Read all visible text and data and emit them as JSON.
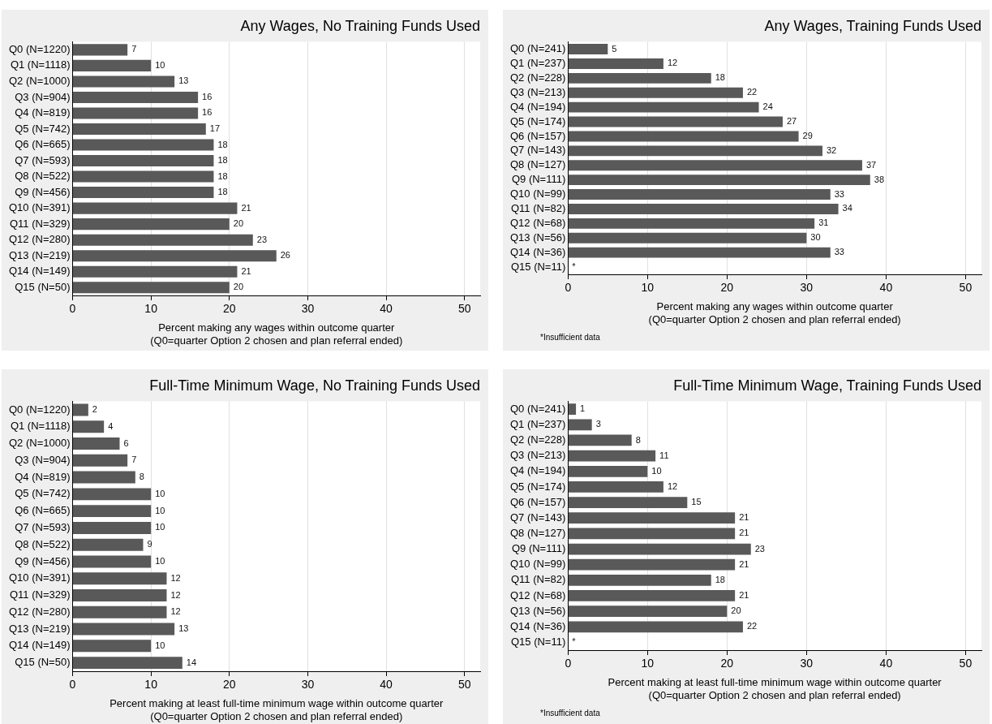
{
  "chart_data": [
    {
      "type": "bar",
      "orientation": "horizontal",
      "title": "Any Wages, No Training Funds Used",
      "xlabel": "Percent making any wages within outcome quarter\n(Q0=quarter Option 2 chosen and plan referral ended)",
      "categories": [
        "Q0 (N=1220)",
        "Q1 (N=1118)",
        "Q2 (N=1000)",
        "Q3 (N=904)",
        "Q4 (N=819)",
        "Q5 (N=742)",
        "Q6 (N=665)",
        "Q7 (N=593)",
        "Q8 (N=522)",
        "Q9 (N=456)",
        "Q10 (N=391)",
        "Q11 (N=329)",
        "Q12 (N=280)",
        "Q13 (N=219)",
        "Q14 (N=149)",
        "Q15 (N=50)"
      ],
      "values": [
        7,
        10,
        13,
        16,
        16,
        17,
        18,
        18,
        18,
        18,
        21,
        20,
        23,
        26,
        21,
        20
      ],
      "value_labels": [
        "7",
        "10",
        "13",
        "16",
        "16",
        "17",
        "18",
        "18",
        "18",
        "18",
        "21",
        "20",
        "23",
        "26",
        "21",
        "20"
      ],
      "color": "#595959",
      "xlim": [
        0,
        52
      ],
      "xticks": [
        0,
        10,
        20,
        30,
        40,
        50
      ],
      "grid": "x"
    },
    {
      "type": "bar",
      "orientation": "horizontal",
      "title": "Any Wages, Training Funds Used",
      "xlabel": "Percent making any wages within outcome quarter\n(Q0=quarter Option 2 chosen and plan referral ended)",
      "annotations": [
        "*Insufficient data"
      ],
      "categories": [
        "Q0 (N=241)",
        "Q1 (N=237)",
        "Q2 (N=228)",
        "Q3 (N=213)",
        "Q4 (N=194)",
        "Q5 (N=174)",
        "Q6 (N=157)",
        "Q7 (N=143)",
        "Q8 (N=127)",
        "Q9 (N=111)",
        "Q10 (N=99)",
        "Q11 (N=82)",
        "Q12 (N=68)",
        "Q13 (N=56)",
        "Q14 (N=36)",
        "Q15 (N=11)"
      ],
      "values": [
        5,
        12,
        18,
        22,
        24,
        27,
        29,
        32,
        37,
        38,
        33,
        34,
        31,
        30,
        33,
        null
      ],
      "value_labels": [
        "5",
        "12",
        "18",
        "22",
        "24",
        "27",
        "29",
        "32",
        "37",
        "38",
        "33",
        "34",
        "31",
        "30",
        "33",
        "*"
      ],
      "color": "#595959",
      "xlim": [
        0,
        52
      ],
      "xticks": [
        0,
        10,
        20,
        30,
        40,
        50
      ],
      "grid": "x"
    },
    {
      "type": "bar",
      "orientation": "horizontal",
      "title": "Full-Time Minimum Wage, No Training Funds Used",
      "xlabel": "Percent making at least full-time minimum wage within outcome quarter\n(Q0=quarter Option 2 chosen and plan referral ended)",
      "categories": [
        "Q0 (N=1220)",
        "Q1 (N=1118)",
        "Q2 (N=1000)",
        "Q3 (N=904)",
        "Q4 (N=819)",
        "Q5 (N=742)",
        "Q6 (N=665)",
        "Q7 (N=593)",
        "Q8 (N=522)",
        "Q9 (N=456)",
        "Q10 (N=391)",
        "Q11 (N=329)",
        "Q12 (N=280)",
        "Q13 (N=219)",
        "Q14 (N=149)",
        "Q15 (N=50)"
      ],
      "values": [
        2,
        4,
        6,
        7,
        8,
        10,
        10,
        10,
        9,
        10,
        12,
        12,
        12,
        13,
        10,
        14
      ],
      "value_labels": [
        "2",
        "4",
        "6",
        "7",
        "8",
        "10",
        "10",
        "10",
        "9",
        "10",
        "12",
        "12",
        "12",
        "13",
        "10",
        "14"
      ],
      "color": "#595959",
      "xlim": [
        0,
        52
      ],
      "xticks": [
        0,
        10,
        20,
        30,
        40,
        50
      ],
      "grid": "x"
    },
    {
      "type": "bar",
      "orientation": "horizontal",
      "title": "Full-Time Minimum Wage, Training Funds Used",
      "xlabel": "Percent making at least full-time minimum wage within outcome quarter\n(Q0=quarter Option 2 chosen and plan referral ended)",
      "annotations": [
        "*Insufficient data"
      ],
      "categories": [
        "Q0 (N=241)",
        "Q1 (N=237)",
        "Q2 (N=228)",
        "Q3 (N=213)",
        "Q4 (N=194)",
        "Q5 (N=174)",
        "Q6 (N=157)",
        "Q7 (N=143)",
        "Q8 (N=127)",
        "Q9 (N=111)",
        "Q10 (N=99)",
        "Q11 (N=82)",
        "Q12 (N=68)",
        "Q13 (N=56)",
        "Q14 (N=36)",
        "Q15 (N=11)"
      ],
      "values": [
        1,
        3,
        8,
        11,
        10,
        12,
        15,
        21,
        21,
        23,
        21,
        18,
        21,
        20,
        22,
        null
      ],
      "value_labels": [
        "1",
        "3",
        "8",
        "11",
        "10",
        "12",
        "15",
        "21",
        "21",
        "23",
        "21",
        "18",
        "21",
        "20",
        "22",
        "*"
      ],
      "color": "#595959",
      "xlim": [
        0,
        52
      ],
      "xticks": [
        0,
        10,
        20,
        30,
        40,
        50
      ],
      "grid": "x"
    }
  ]
}
